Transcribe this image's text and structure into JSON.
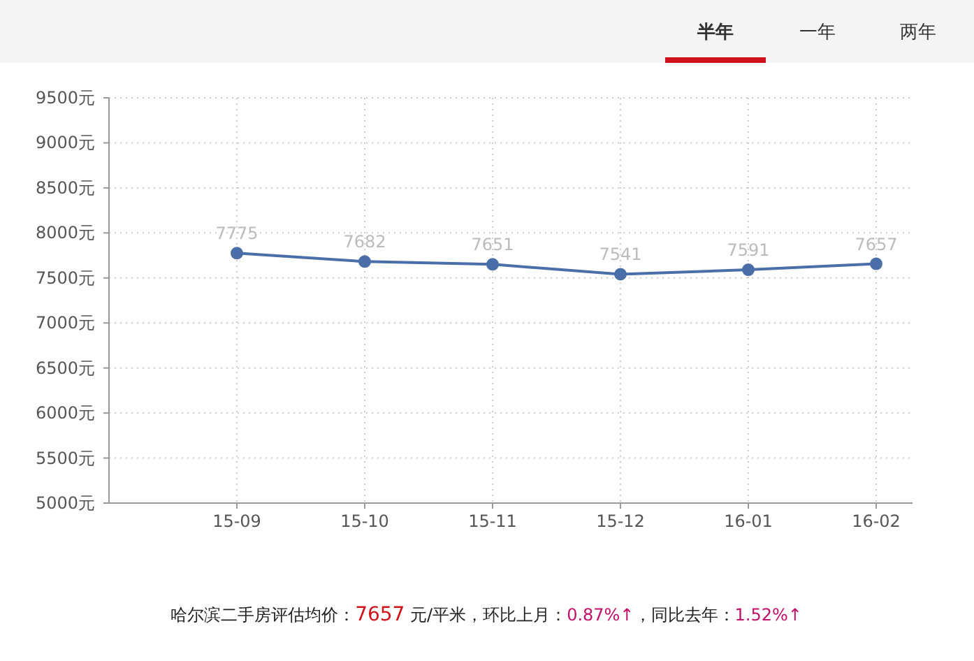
{
  "chart_data": {
    "type": "line",
    "categories": [
      "15-09",
      "15-10",
      "15-11",
      "15-12",
      "16-01",
      "16-02"
    ],
    "series": [
      {
        "color": "#4a6fa8",
        "values": [
          7775,
          7682,
          7651,
          7541,
          7591,
          7657
        ]
      }
    ],
    "ylim": [
      5000,
      9500
    ],
    "yticks": [
      {
        "value": 5000,
        "label": "5000元"
      },
      {
        "value": 5500,
        "label": "5500元"
      },
      {
        "value": 6000,
        "label": "6000元"
      },
      {
        "value": 6500,
        "label": "6500元"
      },
      {
        "value": 7000,
        "label": "7000元"
      },
      {
        "value": 7500,
        "label": "7500元"
      },
      {
        "value": 8000,
        "label": "8000元"
      },
      {
        "value": 8500,
        "label": "8500元"
      },
      {
        "value": 9000,
        "label": "9000元"
      },
      {
        "value": 9500,
        "label": "9500元"
      }
    ],
    "grid": true,
    "marker": "circle",
    "data_labels": true,
    "annotations": [
      "半年",
      "一年",
      "两年",
      "哈尔滨二手房评估均价：7657 元/平米，环比上月：0.87%↑，同比去年：1.52%↑"
    ]
  }
}
